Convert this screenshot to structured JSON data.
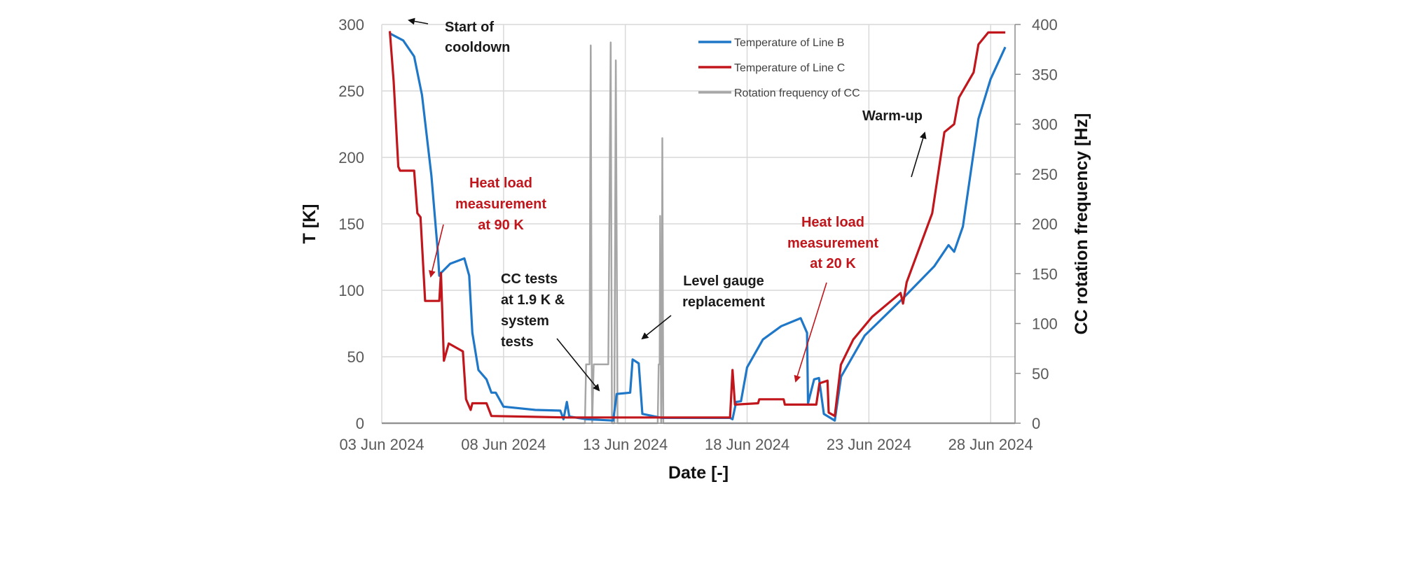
{
  "chart_data": {
    "type": "line",
    "xlabel": "Date [-]",
    "ylabel": "T [K]",
    "y2label": "CC rotation frequency [Hz]",
    "x_unit": "days since 03 Jun 2024",
    "xlim": [
      0,
      26
    ],
    "ylim": [
      0,
      300
    ],
    "y2lim": [
      0,
      400
    ],
    "x_ticks": [
      {
        "value": 0,
        "label": "03 Jun 2024"
      },
      {
        "value": 5,
        "label": "08 Jun 2024"
      },
      {
        "value": 10,
        "label": "13 Jun 2024"
      },
      {
        "value": 15,
        "label": "18 Jun 2024"
      },
      {
        "value": 20,
        "label": "23 Jun 2024"
      },
      {
        "value": 25,
        "label": "28 Jun 2024"
      }
    ],
    "y_ticks": [
      "0",
      "50",
      "100",
      "150",
      "200",
      "250",
      "300"
    ],
    "y2_ticks": [
      "0",
      "50",
      "100",
      "150",
      "200",
      "250",
      "300",
      "350",
      "400"
    ],
    "grid": true,
    "legend_position": "top-right",
    "series": [
      {
        "name": "Temperature of Line B",
        "color": "#1f77c8",
        "axis": "left",
        "points": [
          [
            0.36,
            293
          ],
          [
            0.88,
            288
          ],
          [
            1.33,
            276
          ],
          [
            1.65,
            247
          ],
          [
            2.04,
            186
          ],
          [
            2.3,
            129
          ],
          [
            2.36,
            111
          ],
          [
            2.43,
            113
          ],
          [
            2.81,
            120
          ],
          [
            3.39,
            124
          ],
          [
            3.59,
            111
          ],
          [
            3.72,
            68
          ],
          [
            3.97,
            40
          ],
          [
            4.3,
            33
          ],
          [
            4.5,
            23
          ],
          [
            4.68,
            23
          ],
          [
            5.0,
            12.5
          ],
          [
            6.3,
            10
          ],
          [
            7.33,
            9.5
          ],
          [
            7.46,
            3
          ],
          [
            7.6,
            16
          ],
          [
            7.7,
            5
          ],
          [
            8.4,
            3
          ],
          [
            9.5,
            2
          ],
          [
            9.65,
            22
          ],
          [
            10.2,
            23
          ],
          [
            10.3,
            48
          ],
          [
            10.55,
            45
          ],
          [
            10.7,
            7
          ],
          [
            11.5,
            4
          ],
          [
            14.3,
            4
          ],
          [
            14.4,
            3
          ],
          [
            14.55,
            16
          ],
          [
            14.75,
            16.5
          ],
          [
            15.0,
            42
          ],
          [
            15.65,
            63
          ],
          [
            16.4,
            73
          ],
          [
            17.2,
            79
          ],
          [
            17.46,
            68
          ],
          [
            17.5,
            15
          ],
          [
            17.75,
            33
          ],
          [
            17.95,
            34
          ],
          [
            18.15,
            7
          ],
          [
            18.6,
            2
          ],
          [
            18.86,
            35
          ],
          [
            19.83,
            66
          ],
          [
            21.4,
            94
          ],
          [
            22.68,
            118
          ],
          [
            23.27,
            134
          ],
          [
            23.5,
            129
          ],
          [
            23.86,
            148
          ],
          [
            24.5,
            229
          ],
          [
            25.0,
            259
          ],
          [
            25.6,
            283
          ]
        ]
      },
      {
        "name": "Temperature of Line C",
        "color": "#c0161c",
        "axis": "left",
        "points": [
          [
            0.33,
            295
          ],
          [
            0.49,
            257
          ],
          [
            0.68,
            193
          ],
          [
            0.75,
            190
          ],
          [
            1.33,
            190
          ],
          [
            1.46,
            158
          ],
          [
            1.59,
            155
          ],
          [
            1.78,
            92
          ],
          [
            2.36,
            92
          ],
          [
            2.43,
            113
          ],
          [
            2.55,
            47
          ],
          [
            2.75,
            60
          ],
          [
            3.33,
            54
          ],
          [
            3.46,
            18
          ],
          [
            3.65,
            10
          ],
          [
            3.72,
            15
          ],
          [
            4.3,
            15
          ],
          [
            4.5,
            5.4
          ],
          [
            7.6,
            4.3
          ],
          [
            14.3,
            4.3
          ],
          [
            14.4,
            40
          ],
          [
            14.5,
            14
          ],
          [
            15.45,
            15
          ],
          [
            15.5,
            18
          ],
          [
            16.5,
            18
          ],
          [
            16.55,
            14
          ],
          [
            17.84,
            14
          ],
          [
            17.97,
            30
          ],
          [
            18.3,
            32
          ],
          [
            18.35,
            8
          ],
          [
            18.6,
            5.4
          ],
          [
            18.85,
            44
          ],
          [
            19.36,
            63
          ],
          [
            20.13,
            80
          ],
          [
            21.3,
            98
          ],
          [
            21.4,
            90
          ],
          [
            21.55,
            106
          ],
          [
            22.6,
            158
          ],
          [
            23.1,
            219
          ],
          [
            23.5,
            225
          ],
          [
            23.7,
            245
          ],
          [
            24.3,
            264
          ],
          [
            24.5,
            285
          ],
          [
            24.9,
            294
          ],
          [
            25.6,
            294
          ]
        ]
      },
      {
        "name": "Rotation frequency of CC",
        "color": "#a6a6a6",
        "axis": "right",
        "points": [
          [
            0,
            0
          ],
          [
            8.34,
            0
          ],
          [
            8.39,
            59
          ],
          [
            8.53,
            59
          ],
          [
            8.58,
            379
          ],
          [
            8.62,
            59
          ],
          [
            8.64,
            0
          ],
          [
            8.7,
            59
          ],
          [
            9.3,
            59
          ],
          [
            9.4,
            382
          ],
          [
            9.45,
            0
          ],
          [
            9.55,
            0
          ],
          [
            9.61,
            364
          ],
          [
            9.68,
            0
          ],
          [
            11.33,
            0
          ],
          [
            11.37,
            59
          ],
          [
            11.41,
            59
          ],
          [
            11.43,
            208
          ],
          [
            11.47,
            0
          ],
          [
            11.5,
            59
          ],
          [
            11.52,
            286
          ],
          [
            11.56,
            0
          ],
          [
            26,
            0
          ]
        ]
      }
    ]
  },
  "annotations": {
    "start": [
      "Start of",
      "cooldown"
    ],
    "heat90": [
      "Heat load",
      "measurement",
      "at 90 K"
    ],
    "cctests": [
      "CC tests",
      "at 1.9 K &",
      "system",
      "tests"
    ],
    "gauge": [
      "Level gauge",
      "replacement"
    ],
    "heat20": [
      "Heat load",
      "measurement",
      "at 20 K"
    ],
    "warmup": [
      "Warm-up"
    ]
  }
}
